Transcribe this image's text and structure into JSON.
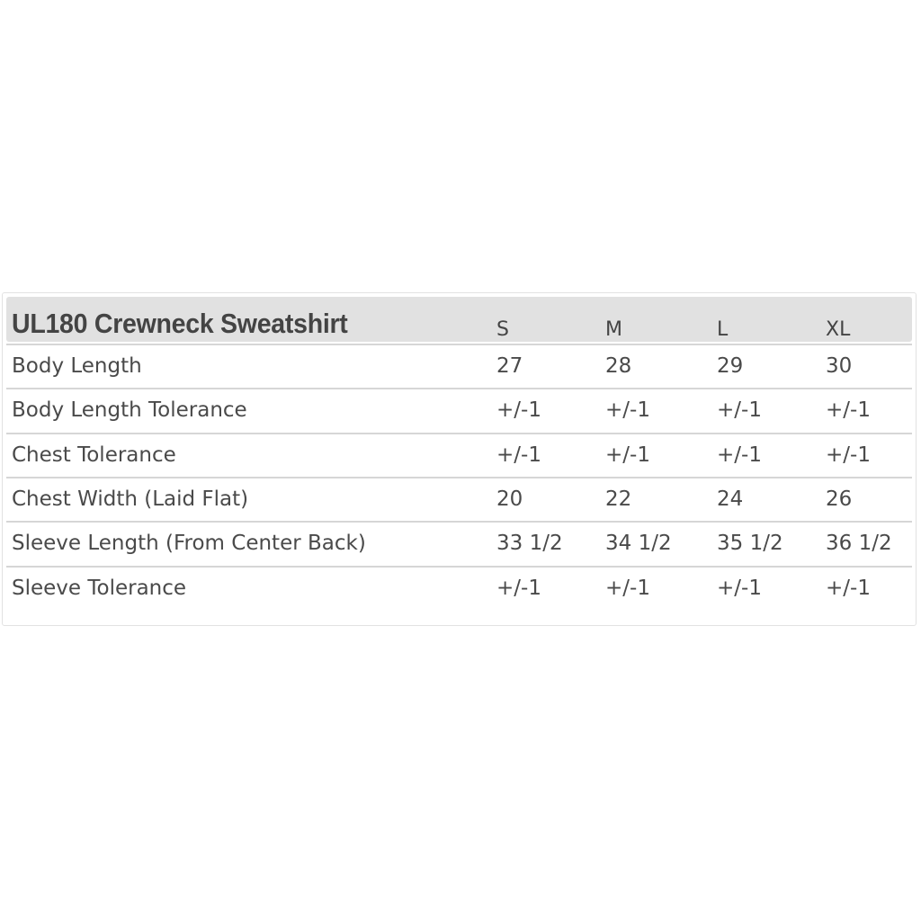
{
  "title": "UL180 Crewneck Sweatshirt",
  "sizes": [
    "S",
    "M",
    "L",
    "XL"
  ],
  "rows": [
    {
      "label": "Body Length",
      "values": [
        "27",
        "28",
        "29",
        "30"
      ]
    },
    {
      "label": "Body Length Tolerance",
      "values": [
        "+/-1",
        "+/-1",
        "+/-1",
        "+/-1"
      ]
    },
    {
      "label": "Chest Tolerance",
      "values": [
        "+/-1",
        "+/-1",
        "+/-1",
        "+/-1"
      ]
    },
    {
      "label": "Chest Width (Laid Flat)",
      "values": [
        "20",
        "22",
        "24",
        "26"
      ]
    },
    {
      "label": "Sleeve Length (From Center Back)",
      "values": [
        "33 1/2",
        "34 1/2",
        "35 1/2",
        "36 1/2"
      ]
    },
    {
      "label": "Sleeve Tolerance",
      "values": [
        "+/-1",
        "+/-1",
        "+/-1",
        "+/-1"
      ]
    }
  ]
}
